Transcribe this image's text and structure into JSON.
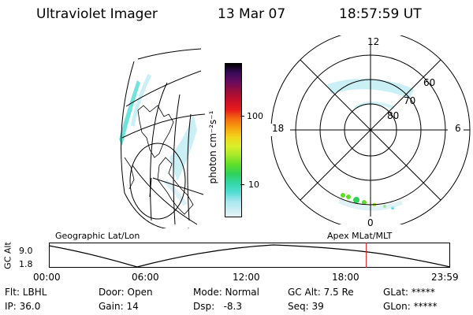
{
  "header": {
    "instrument": "Ultraviolet Imager",
    "date": "13 Mar 07",
    "time": "18:57:59 UT"
  },
  "colorbar": {
    "label": "photon cm⁻²s⁻¹",
    "ticks": [
      "100",
      "10"
    ],
    "colors": [
      "#000000",
      "#3a0a5a",
      "#6a0b5e",
      "#9b0d3b",
      "#c8102a",
      "#e81c1c",
      "#f36a10",
      "#f7a20f",
      "#f2d61c",
      "#d9ef2a",
      "#a5e82a",
      "#5ede2a",
      "#2fd15a",
      "#34d6a5",
      "#4fdcd2",
      "#a7e6ee",
      "#e6f3f7"
    ]
  },
  "polar": {
    "mlt_labels": {
      "top": "12",
      "left": "18",
      "right": "6",
      "bottom": "0"
    },
    "lat_labels": [
      "60",
      "70",
      "80"
    ]
  },
  "timeline": {
    "left_title": "Geographic Lat/Lon",
    "right_title": "Apex MLat/MLT",
    "ylabel": "GC Alt",
    "y_ticks": [
      "9.0",
      "1.8"
    ],
    "x_ticks": [
      "00:00",
      "06:00",
      "12:00",
      "18:00",
      "23:59"
    ],
    "current_time_hours": 18.97
  },
  "footer": {
    "flt": "Flt: LBHL",
    "ip": "IP: 36.0",
    "door": "Door: Open",
    "gain": "Gain: 14",
    "mode": "Mode: Normal",
    "dsp": "Dsp:   -8.3",
    "gcalt": "GC Alt: 7.5 Re",
    "seq": "Seq: 39",
    "glat": "GLat: *****",
    "glon": "GLon: *****"
  }
}
